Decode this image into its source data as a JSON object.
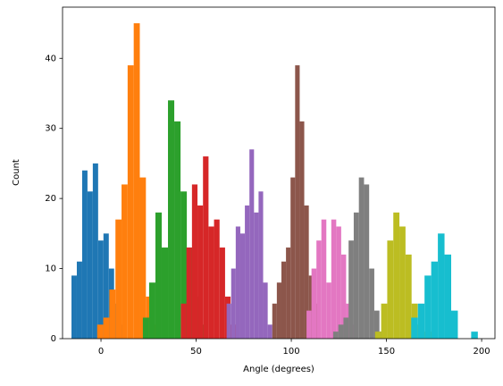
{
  "chart_data": {
    "type": "histogram",
    "xlabel": "Angle (degrees)",
    "ylabel": "Count",
    "xlim": [
      -20.2,
      207
    ],
    "ylim": [
      0,
      47.3
    ],
    "xticks": [
      0,
      50,
      100,
      150,
      200
    ],
    "yticks": [
      0,
      10,
      20,
      30,
      40
    ],
    "series": [
      {
        "color": "#1f77b4",
        "bins": [
          -15.5,
          -12.7,
          -9.9,
          -7.1,
          -4.3,
          -1.5,
          1.3,
          4.1,
          6.9,
          9.7,
          12.5
        ],
        "values": [
          9,
          11,
          24,
          21,
          25,
          14,
          15,
          10,
          5,
          2
        ]
      },
      {
        "color": "#ff7f0e",
        "bins": [
          -2,
          1.2,
          4.4,
          7.6,
          10.8,
          14,
          17.2,
          20.4,
          23.6,
          26.8,
          30
        ],
        "values": [
          2,
          3,
          7,
          17,
          22,
          39,
          45,
          23,
          6,
          2
        ]
      },
      {
        "color": "#2ca02c",
        "bins": [
          22,
          25.3,
          28.6,
          31.9,
          35.2,
          38.5,
          41.8,
          45.1,
          48.4,
          51.7,
          55
        ],
        "values": [
          3,
          8,
          18,
          13,
          34,
          31,
          21,
          13,
          6,
          2
        ]
      },
      {
        "color": "#d62728",
        "bins": [
          42,
          44.9,
          47.8,
          50.7,
          53.6,
          56.5,
          59.4,
          62.3,
          65.2,
          68.1,
          71
        ],
        "values": [
          5,
          13,
          22,
          19,
          26,
          16,
          17,
          13,
          6,
          2
        ]
      },
      {
        "color": "#9467bd",
        "bins": [
          66,
          68.4,
          70.8,
          73.2,
          75.6,
          78,
          80.4,
          82.8,
          85.2,
          87.6,
          90
        ],
        "values": [
          5,
          10,
          16,
          15,
          19,
          27,
          18,
          21,
          8,
          2
        ]
      },
      {
        "color": "#8c564b",
        "bins": [
          90,
          92.4,
          94.8,
          97.2,
          99.6,
          102,
          104.4,
          106.8,
          109.2,
          111.6,
          114
        ],
        "values": [
          5,
          8,
          11,
          13,
          23,
          39,
          31,
          19,
          9,
          5
        ]
      },
      {
        "color": "#e377c2",
        "bins": [
          108,
          110.6,
          113.2,
          115.8,
          118.4,
          121,
          123.6,
          126.2,
          128.8,
          131.4,
          134
        ],
        "values": [
          4,
          10,
          14,
          17,
          8,
          17,
          16,
          12,
          5,
          2
        ]
      },
      {
        "color": "#7f7f7f",
        "bins": [
          122,
          124.7,
          127.4,
          130.1,
          132.8,
          135.5,
          138.2,
          140.9,
          143.6,
          146.3,
          149
        ],
        "values": [
          1,
          2,
          3,
          14,
          18,
          23,
          22,
          10,
          4,
          1
        ]
      },
      {
        "color": "#bcbd22",
        "bins": [
          144,
          147.2,
          150.4,
          153.6,
          156.8,
          160,
          163.2,
          166.4,
          169.6,
          172.8,
          176
        ],
        "values": [
          1,
          5,
          14,
          18,
          16,
          12,
          5,
          2,
          1,
          1
        ]
      },
      {
        "color": "#17becf",
        "bins": [
          163,
          166.5,
          170,
          173.5,
          177,
          180.5,
          184,
          187.5,
          191,
          194.5,
          198
        ],
        "values": [
          3,
          5,
          9,
          11,
          15,
          12,
          4,
          0,
          0,
          1
        ]
      }
    ]
  }
}
